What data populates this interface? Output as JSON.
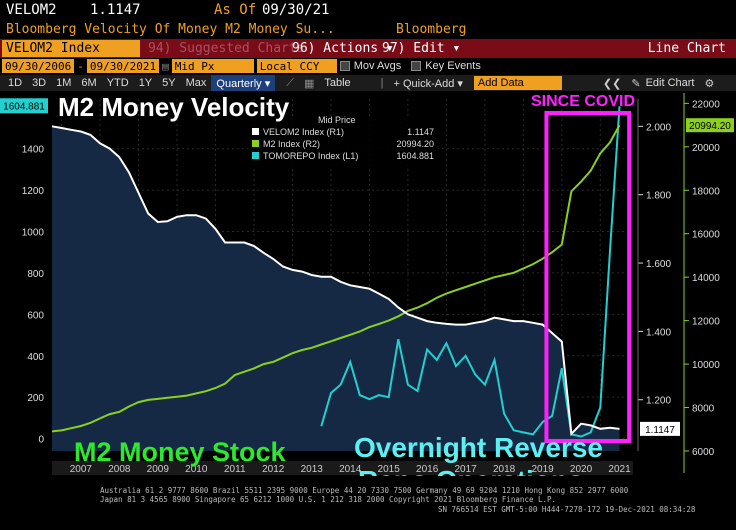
{
  "header": {
    "ticker": "VELOM2",
    "value": "1.1147",
    "as_of_label": "As Of",
    "as_of_date": "09/30/21",
    "description": "Bloomberg Velocity Of Money M2 Money Su...",
    "source": "Bloomberg"
  },
  "toolbar": {
    "index_label": "VELOM2 Index",
    "suggested": "94) Suggested Charts",
    "actions": "96) Actions ▾",
    "edit": "97) Edit ▾",
    "chart_type": "Line Chart"
  },
  "controls": {
    "start_date": "09/30/2006",
    "end_date": "09/30/2021",
    "price_type": "Mid Px",
    "currency": "Local CCY",
    "mov_avgs": "Mov Avgs",
    "key_events": "Key Events"
  },
  "range_bar": {
    "periods": [
      "1D",
      "3D",
      "1M",
      "6M",
      "YTD",
      "1Y",
      "5Y",
      "Max"
    ],
    "frequency": "Quarterly ▾",
    "table": "Table",
    "quick_add": "+ Quick-Add ▾",
    "add_data_placeholder": "Add Data",
    "edit_chart": "Edit Chart"
  },
  "annotations": {
    "velocity_title": "M2 Money Velocity",
    "stock_title": "M2 Money Stock",
    "since_covid": "SINCE COVID",
    "repo_line1": "Overnight Reverse",
    "repo_line2": "Repo Operations"
  },
  "legend": {
    "title": "Mid Price",
    "entries": [
      {
        "name": "VELOM2 Index  (R1)",
        "value": "1.1147",
        "color": "#ffffff"
      },
      {
        "name": "M2 Index  (R2)",
        "value": "20994.20",
        "color": "#8ccf1e"
      },
      {
        "name": "TOMOREPO Index  (L1)",
        "value": "1604.881",
        "color": "#22d0d0"
      }
    ]
  },
  "footer": {
    "line1": "Australia 61 2 9777 8600 Brazil 5511 2395 9000 Europe 44 20 7330 7500 Germany 49 69 9204 1210 Hong Kong 852 2977 6000",
    "line2": "Japan 81 3 4565 8900      Singapore 65 6212 1000      U.S. 1 212 318 2000        Copyright 2021 Bloomberg Finance L.P.",
    "line3": "SN 766514 EST  GMT-5:00 H444-7278-172 19-Dec-2021 08:34:28"
  },
  "chart_data": {
    "type": "line",
    "x_ticks": [
      "2007",
      "2008",
      "2009",
      "2010",
      "2011",
      "2012",
      "2013",
      "2014",
      "2015",
      "2016",
      "2017",
      "2018",
      "2019",
      "2020",
      "2021"
    ],
    "left_axis": {
      "ticks": [
        0,
        200,
        400,
        600,
        800,
        1000,
        1200,
        1400
      ],
      "range": [
        -60,
        1640
      ],
      "last_label": "1604.881"
    },
    "right1_axis": {
      "ticks": [
        "1.200",
        "1.400",
        "1.600",
        "1.800",
        "2.000"
      ],
      "range": [
        1.05,
        2.08
      ],
      "last_label": "1.1147"
    },
    "right2_axis": {
      "ticks": [
        6000,
        8000,
        10000,
        12000,
        14000,
        16000,
        18000,
        20000,
        22000
      ],
      "range": [
        6000,
        22200
      ],
      "last_label": "20994.20"
    },
    "series": [
      {
        "name": "VELOM2 Index",
        "axis": "right1",
        "color": "#ffffff",
        "x": [
          2006.75,
          2007.0,
          2007.25,
          2007.5,
          2007.75,
          2008.0,
          2008.25,
          2008.5,
          2008.75,
          2009.0,
          2009.25,
          2009.5,
          2009.75,
          2010.0,
          2010.25,
          2010.5,
          2010.75,
          2011.0,
          2011.25,
          2011.5,
          2011.75,
          2012.0,
          2012.25,
          2012.5,
          2012.75,
          2013.0,
          2013.25,
          2013.5,
          2013.75,
          2014.0,
          2014.25,
          2014.5,
          2014.75,
          2015.0,
          2015.25,
          2015.5,
          2015.75,
          2016.0,
          2016.25,
          2016.5,
          2016.75,
          2017.0,
          2017.25,
          2017.5,
          2017.75,
          2018.0,
          2018.25,
          2018.5,
          2018.75,
          2019.0,
          2019.25,
          2019.5,
          2019.75,
          2020.0,
          2020.25,
          2020.5,
          2020.75,
          2021.0,
          2021.25,
          2021.5
        ],
        "values": [
          2.0,
          1.995,
          1.99,
          1.985,
          1.975,
          1.95,
          1.935,
          1.91,
          1.865,
          1.805,
          1.745,
          1.72,
          1.722,
          1.735,
          1.74,
          1.74,
          1.73,
          1.7,
          1.66,
          1.66,
          1.66,
          1.65,
          1.63,
          1.612,
          1.59,
          1.58,
          1.575,
          1.565,
          1.56,
          1.56,
          1.545,
          1.535,
          1.53,
          1.525,
          1.51,
          1.495,
          1.47,
          1.45,
          1.44,
          1.43,
          1.425,
          1.422,
          1.42,
          1.42,
          1.425,
          1.43,
          1.44,
          1.435,
          1.43,
          1.43,
          1.425,
          1.42,
          1.395,
          1.37,
          1.1,
          1.13,
          1.125,
          1.115,
          1.118,
          1.1147
        ]
      },
      {
        "name": "M2 Index",
        "axis": "right2",
        "color": "#8ccf1e",
        "x": [
          2006.75,
          2007.0,
          2007.25,
          2007.5,
          2007.75,
          2008.0,
          2008.25,
          2008.5,
          2008.75,
          2009.0,
          2009.25,
          2009.5,
          2009.75,
          2010.0,
          2010.25,
          2010.5,
          2010.75,
          2011.0,
          2011.25,
          2011.5,
          2011.75,
          2012.0,
          2012.25,
          2012.5,
          2012.75,
          2013.0,
          2013.25,
          2013.5,
          2013.75,
          2014.0,
          2014.25,
          2014.5,
          2014.75,
          2015.0,
          2015.25,
          2015.5,
          2015.75,
          2016.0,
          2016.25,
          2016.5,
          2016.75,
          2017.0,
          2017.25,
          2017.5,
          2017.75,
          2018.0,
          2018.25,
          2018.5,
          2018.75,
          2019.0,
          2019.25,
          2019.5,
          2019.75,
          2020.0,
          2020.25,
          2020.5,
          2020.75,
          2021.0,
          2021.25,
          2021.5
        ],
        "values": [
          6900,
          6950,
          7050,
          7150,
          7300,
          7500,
          7700,
          7800,
          8050,
          8250,
          8350,
          8400,
          8450,
          8500,
          8550,
          8650,
          8750,
          8900,
          9100,
          9500,
          9650,
          9800,
          10000,
          10100,
          10300,
          10500,
          10650,
          10750,
          10900,
          11050,
          11200,
          11350,
          11500,
          11700,
          11850,
          12000,
          12200,
          12450,
          12600,
          12800,
          13050,
          13250,
          13400,
          13550,
          13700,
          13850,
          14000,
          14100,
          14200,
          14400,
          14600,
          14850,
          15150,
          15500,
          17950,
          18400,
          18900,
          19700,
          20200,
          20994.2
        ]
      },
      {
        "name": "TOMOREPO Index",
        "axis": "left",
        "color": "#22d0d0",
        "x": [
          2013.75,
          2014.0,
          2014.25,
          2014.5,
          2014.75,
          2015.0,
          2015.25,
          2015.5,
          2015.75,
          2016.0,
          2016.25,
          2016.5,
          2016.75,
          2017.0,
          2017.25,
          2017.5,
          2017.75,
          2018.0,
          2018.25,
          2018.5,
          2018.75,
          2019.0,
          2019.25,
          2019.5,
          2019.75,
          2020.0,
          2020.25,
          2020.5,
          2020.75,
          2021.0,
          2021.25,
          2021.5
        ],
        "values": [
          60,
          220,
          260,
          370,
          210,
          190,
          210,
          200,
          480,
          260,
          230,
          430,
          380,
          460,
          350,
          400,
          310,
          260,
          380,
          120,
          40,
          30,
          20,
          80,
          110,
          340,
          20,
          10,
          30,
          150,
          900,
          1604.881
        ]
      },
      {
        "name": "Velocity area fill",
        "axis": "right1",
        "color": "#162944",
        "x": [
          2006.75,
          2007.0,
          2007.25,
          2007.5,
          2007.75,
          2008.0,
          2008.25,
          2008.5,
          2008.75,
          2009.0,
          2009.25,
          2009.5,
          2009.75,
          2010.0,
          2010.25,
          2010.5,
          2010.75,
          2011.0,
          2011.25,
          2011.5,
          2011.75,
          2012.0,
          2012.25,
          2012.5,
          2012.75,
          2013.0,
          2013.25,
          2013.5,
          2013.75,
          2014.0,
          2014.25,
          2014.5,
          2014.75,
          2015.0,
          2015.25,
          2015.5,
          2015.75,
          2016.0,
          2016.25,
          2016.5,
          2016.75,
          2017.0,
          2017.25,
          2017.5,
          2017.75,
          2018.0,
          2018.25,
          2018.5,
          2018.75,
          2019.0,
          2019.25,
          2019.5,
          2019.75,
          2020.0,
          2020.25,
          2020.5,
          2020.75,
          2021.0,
          2021.25,
          2021.5
        ],
        "values": [
          2.0,
          1.995,
          1.99,
          1.985,
          1.975,
          1.95,
          1.935,
          1.91,
          1.865,
          1.805,
          1.745,
          1.72,
          1.722,
          1.735,
          1.74,
          1.74,
          1.73,
          1.7,
          1.66,
          1.66,
          1.66,
          1.65,
          1.63,
          1.612,
          1.59,
          1.58,
          1.575,
          1.565,
          1.56,
          1.56,
          1.545,
          1.535,
          1.53,
          1.525,
          1.51,
          1.495,
          1.47,
          1.45,
          1.44,
          1.43,
          1.425,
          1.422,
          1.42,
          1.42,
          1.425,
          1.43,
          1.44,
          1.435,
          1.43,
          1.43,
          1.425,
          1.42,
          1.395,
          1.37,
          1.1,
          1.13,
          1.125,
          1.115,
          1.118,
          1.1147
        ]
      }
    ],
    "highlight_range": [
      2019.6,
      2021.75
    ],
    "xlim": [
      2006.75,
      2021.85
    ]
  }
}
